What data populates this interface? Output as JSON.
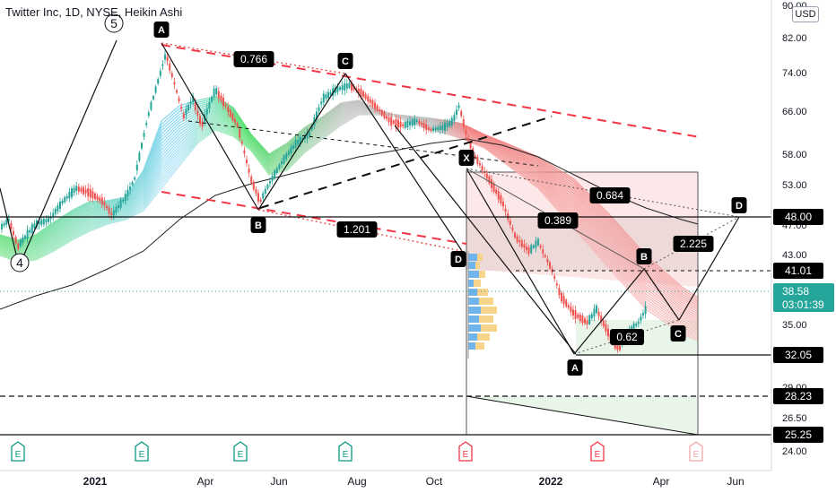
{
  "header": {
    "title": "Twitter Inc, 1D, NYSE, Heikin Ashi",
    "currency": "USD"
  },
  "colors": {
    "up": "#26a69a",
    "down": "#ef5350",
    "dashed_red": "#f23645",
    "last_price": "#26a69a",
    "label_bg": "#000000",
    "earnings_green": "#089981",
    "earnings_red": "#f23645"
  },
  "chart_data": {
    "type": "candlestick",
    "y_axis": {
      "ticks": [
        "90.00",
        "82.00",
        "74.00",
        "66.00",
        "58.00",
        "53.00",
        "47.00",
        "43.00",
        "35.00",
        "29.00",
        "26.50",
        "24.00"
      ],
      "tick_values": [
        90,
        82,
        74,
        66,
        58,
        53,
        47,
        43,
        35,
        29,
        26.5,
        24
      ]
    },
    "x_axis": {
      "ticks": [
        {
          "label": "2021",
          "bold": true
        },
        {
          "label": "Apr",
          "bold": false
        },
        {
          "label": "Jun",
          "bold": false
        },
        {
          "label": "Aug",
          "bold": false
        },
        {
          "label": "Oct",
          "bold": false
        },
        {
          "label": "2022",
          "bold": true
        },
        {
          "label": "Apr",
          "bold": false
        },
        {
          "label": "Jun",
          "bold": false
        }
      ]
    },
    "last_price": {
      "value": 38.58,
      "label": "38.58",
      "countdown": "03:01:39"
    },
    "price_labels": [
      {
        "value": 48.0,
        "label": "48.00"
      },
      {
        "value": 41.01,
        "label": "41.01"
      },
      {
        "value": 32.05,
        "label": "32.05"
      },
      {
        "value": 28.23,
        "label": "28.23"
      },
      {
        "value": 25.25,
        "label": "25.25"
      }
    ],
    "harmonic_1": {
      "points": [
        {
          "name": "A",
          "value": 81.0
        },
        {
          "name": "B",
          "value": 50.0
        },
        {
          "name": "C",
          "value": 73.5
        },
        {
          "name": "D",
          "value": 44.5
        }
      ],
      "ratios": [
        "0.766",
        "1.201"
      ]
    },
    "harmonic_2": {
      "points": [
        {
          "name": "X",
          "value": 55.0
        },
        {
          "name": "A",
          "value": 32.0
        },
        {
          "name": "B",
          "value": 41.0
        },
        {
          "name": "C",
          "value": 35.5
        },
        {
          "name": "D",
          "value": 48.0
        }
      ],
      "ratios": [
        "0.684",
        "0.389",
        "2.225",
        "0.62"
      ]
    },
    "elliott_waves": [
      "4",
      "5"
    ],
    "earnings_markers": [
      "E",
      "E",
      "E",
      "E",
      "E",
      "E",
      "E"
    ]
  }
}
